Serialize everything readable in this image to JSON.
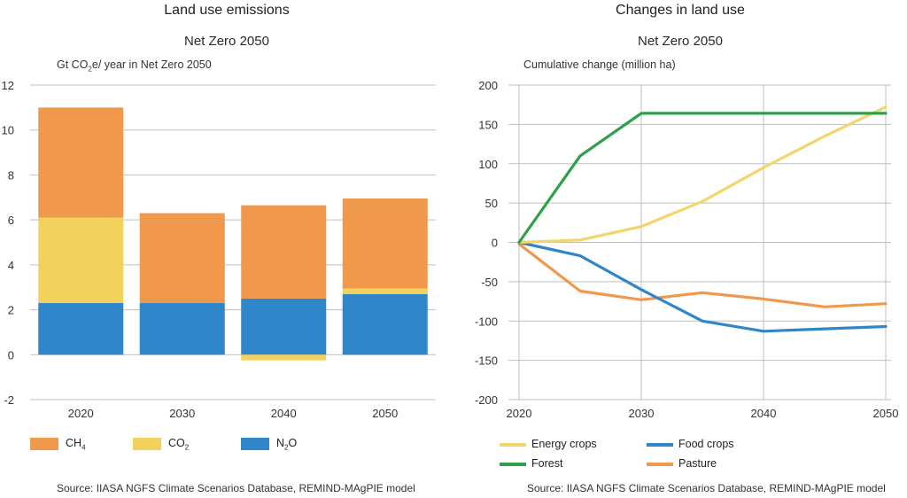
{
  "left": {
    "title": "Land use emissions",
    "subtitle": "Net Zero 2050",
    "unit_prefix": "Gt CO",
    "unit_sub": "2",
    "unit_suffix": "e/ year in Net Zero 2050",
    "source": "Source: IIASA NGFS Climate Scenarios Database, REMIND-MAgPIE model"
  },
  "right": {
    "title": "Changes in land use",
    "subtitle": "Net Zero 2050",
    "unit": "Cumulative change (million ha)",
    "source": "Source: IIASA NGFS Climate Scenarios Database, REMIND-MAgPIE model"
  },
  "colors": {
    "ch4": "#f0994c",
    "co2": "#f2d15c",
    "n2o": "#2f86c8",
    "energy": "#f2d66c",
    "food": "#2f86c8",
    "forest": "#2ea04a",
    "pasture": "#f0994c",
    "grid": "#bfbfbf"
  },
  "chart_data": [
    {
      "type": "bar",
      "stacked": true,
      "categories": [
        "2020",
        "2030",
        "2040",
        "2050"
      ],
      "series": [
        {
          "name": "N2O",
          "label_main": "N",
          "label_sub": "2",
          "label_tail": "O",
          "color_key": "n2o",
          "values": [
            2.3,
            2.3,
            2.5,
            2.7
          ]
        },
        {
          "name": "CO2",
          "label_main": "CO",
          "label_sub": "2",
          "label_tail": "",
          "color_key": "co2",
          "values": [
            3.8,
            0.0,
            -0.25,
            0.25
          ]
        },
        {
          "name": "CH4",
          "label_main": "CH",
          "label_sub": "4",
          "label_tail": "",
          "color_key": "ch4",
          "values": [
            4.9,
            4.0,
            4.15,
            4.0
          ]
        }
      ],
      "legend_order": [
        2,
        1,
        0
      ],
      "ylim": [
        -2,
        12
      ],
      "yticks": [
        -2,
        0,
        2,
        4,
        6,
        8,
        10,
        12
      ],
      "grid": true,
      "legend_position": "bottom"
    },
    {
      "type": "line",
      "x": [
        2020,
        2025,
        2030,
        2035,
        2040,
        2045,
        2050
      ],
      "xticks": [
        2020,
        2030,
        2040,
        2050
      ],
      "series": [
        {
          "name": "Energy crops",
          "color_key": "energy",
          "values": [
            0,
            3,
            20,
            52,
            95,
            135,
            172
          ]
        },
        {
          "name": "Food crops",
          "color_key": "food",
          "values": [
            0,
            -17,
            -60,
            -100,
            -113,
            -110,
            -107
          ]
        },
        {
          "name": "Forest",
          "color_key": "forest",
          "values": [
            0,
            110,
            164,
            164,
            164,
            164,
            164
          ]
        },
        {
          "name": "Pasture",
          "color_key": "pasture",
          "values": [
            -2,
            -62,
            -73,
            -64,
            -72,
            -82,
            -78
          ]
        }
      ],
      "ylim": [
        -200,
        200
      ],
      "yticks": [
        -200,
        -150,
        -100,
        -50,
        0,
        50,
        100,
        150,
        200
      ],
      "grid": true,
      "legend_position": "bottom"
    }
  ]
}
